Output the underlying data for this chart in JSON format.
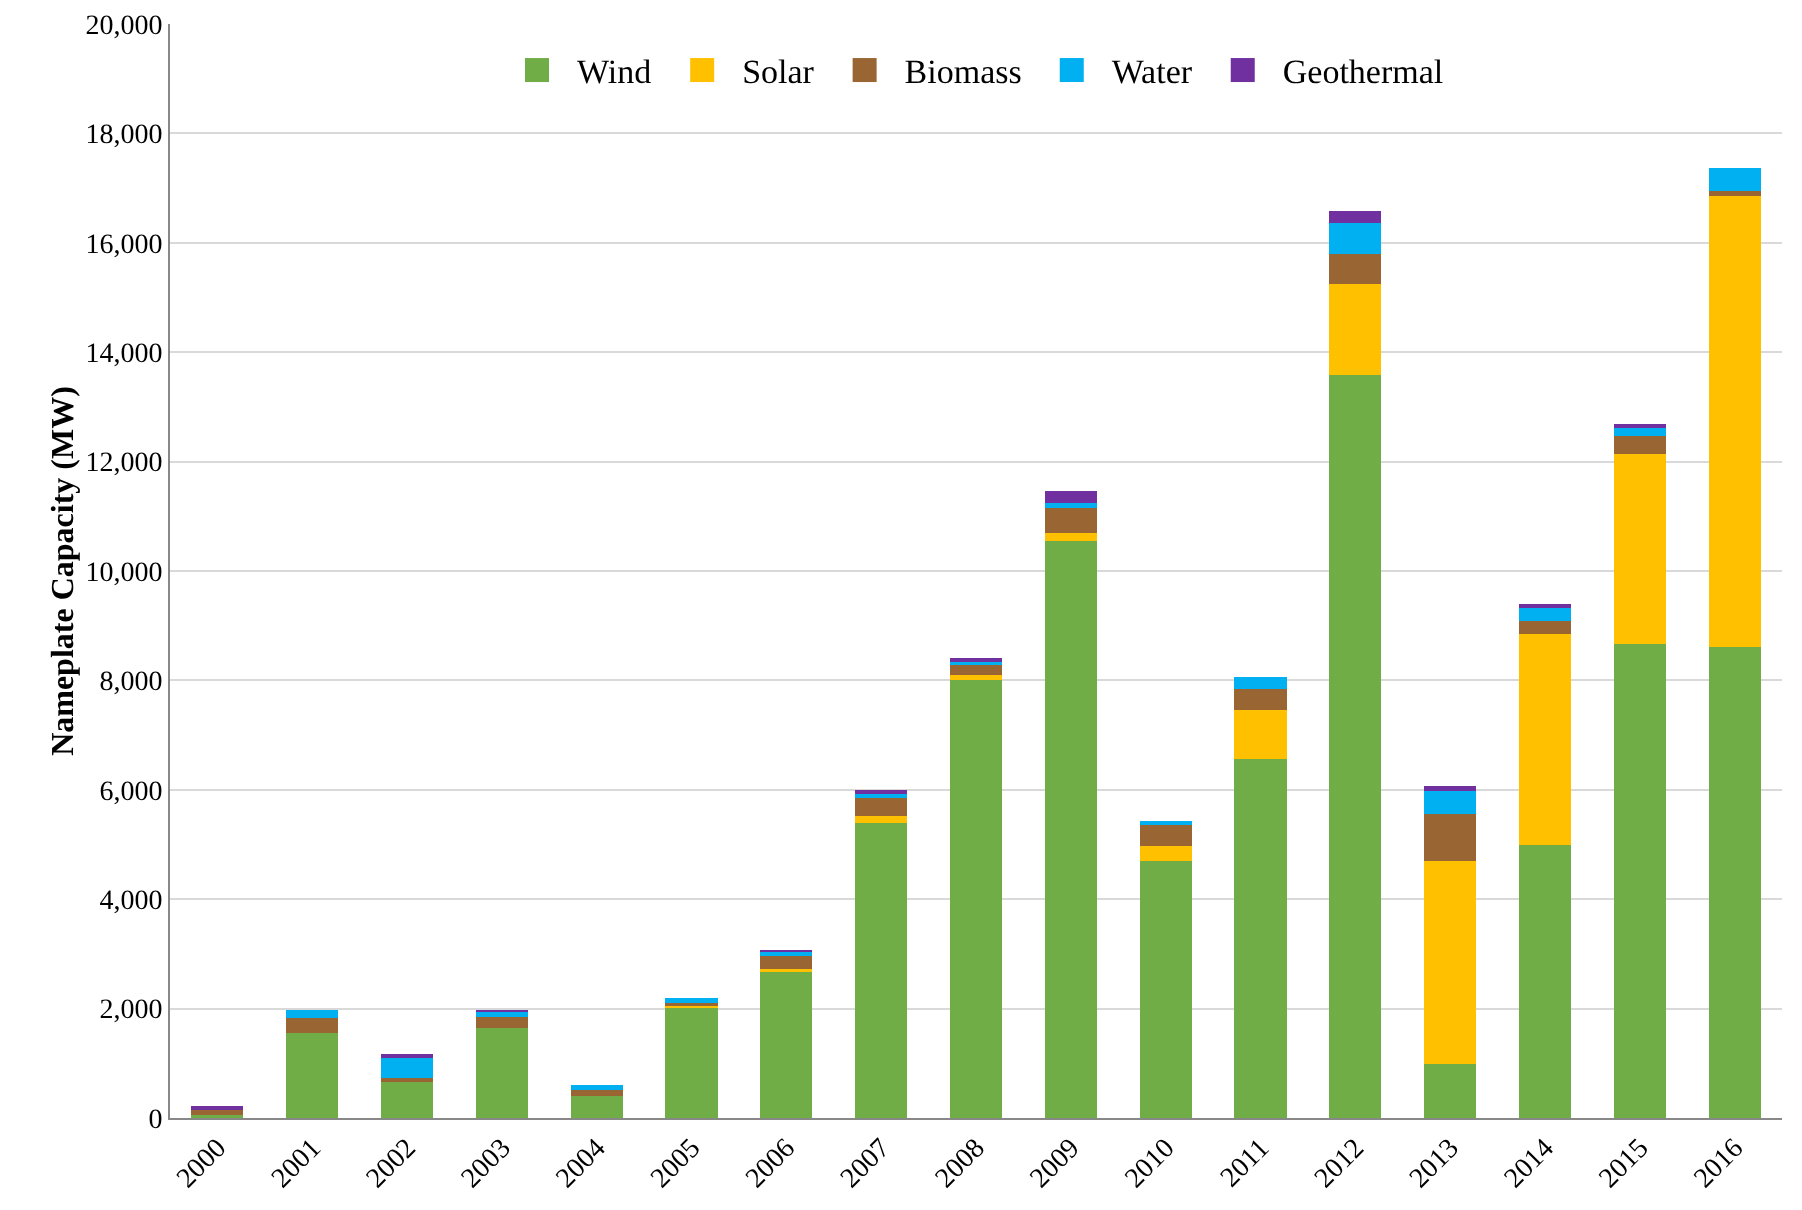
{
  "chart_data": {
    "type": "bar",
    "stacked": true,
    "ylabel": "Nameplate Capacity (MW)",
    "categories": [
      "2000",
      "2001",
      "2002",
      "2003",
      "2004",
      "2005",
      "2006",
      "2007",
      "2008",
      "2009",
      "2010",
      "2011",
      "2012",
      "2013",
      "2014",
      "2015",
      "2016"
    ],
    "series": [
      {
        "name": "Wind",
        "color": "#70ad47",
        "values": [
          60,
          1550,
          660,
          1640,
          410,
          2030,
          2690,
          5400,
          8010,
          10540,
          4700,
          6570,
          13580,
          980,
          5000,
          8670,
          8610
        ]
      },
      {
        "name": "Solar",
        "color": "#ffc000",
        "values": [
          0,
          0,
          0,
          0,
          0,
          50,
          40,
          130,
          80,
          160,
          280,
          890,
          1670,
          3710,
          3850,
          3470,
          8240
        ]
      },
      {
        "name": "Biomass",
        "color": "#996633",
        "values": [
          90,
          280,
          80,
          210,
          100,
          30,
          260,
          330,
          190,
          450,
          370,
          390,
          550,
          860,
          240,
          320,
          100
        ]
      },
      {
        "name": "Water",
        "color": "#00b0f0",
        "values": [
          0,
          150,
          380,
          90,
          100,
          80,
          50,
          70,
          80,
          90,
          80,
          210,
          560,
          420,
          240,
          160,
          420
        ]
      },
      {
        "name": "Geothermal",
        "color": "#7030a0",
        "values": [
          50,
          0,
          20,
          20,
          0,
          0,
          20,
          30,
          40,
          220,
          0,
          0,
          220,
          100,
          40,
          70,
          0
        ]
      }
    ],
    "ylim": [
      0,
      20000
    ],
    "yticks": [
      0,
      {
        "value": 2000,
        "label": "2,000"
      },
      {
        "value": 4000,
        "label": "4,000"
      },
      {
        "value": 6000,
        "label": "6,000"
      },
      {
        "value": 8000,
        "label": "8,000"
      },
      {
        "value": 10000,
        "label": "10,000"
      },
      {
        "value": 12000,
        "label": "12,000"
      },
      {
        "value": 14000,
        "label": "14,000"
      },
      {
        "value": 16000,
        "label": "16,000"
      },
      {
        "value": 18000,
        "label": "18,000"
      },
      {
        "value": 20000,
        "label": "20,000"
      }
    ],
    "grid": "y",
    "legend": "top"
  }
}
